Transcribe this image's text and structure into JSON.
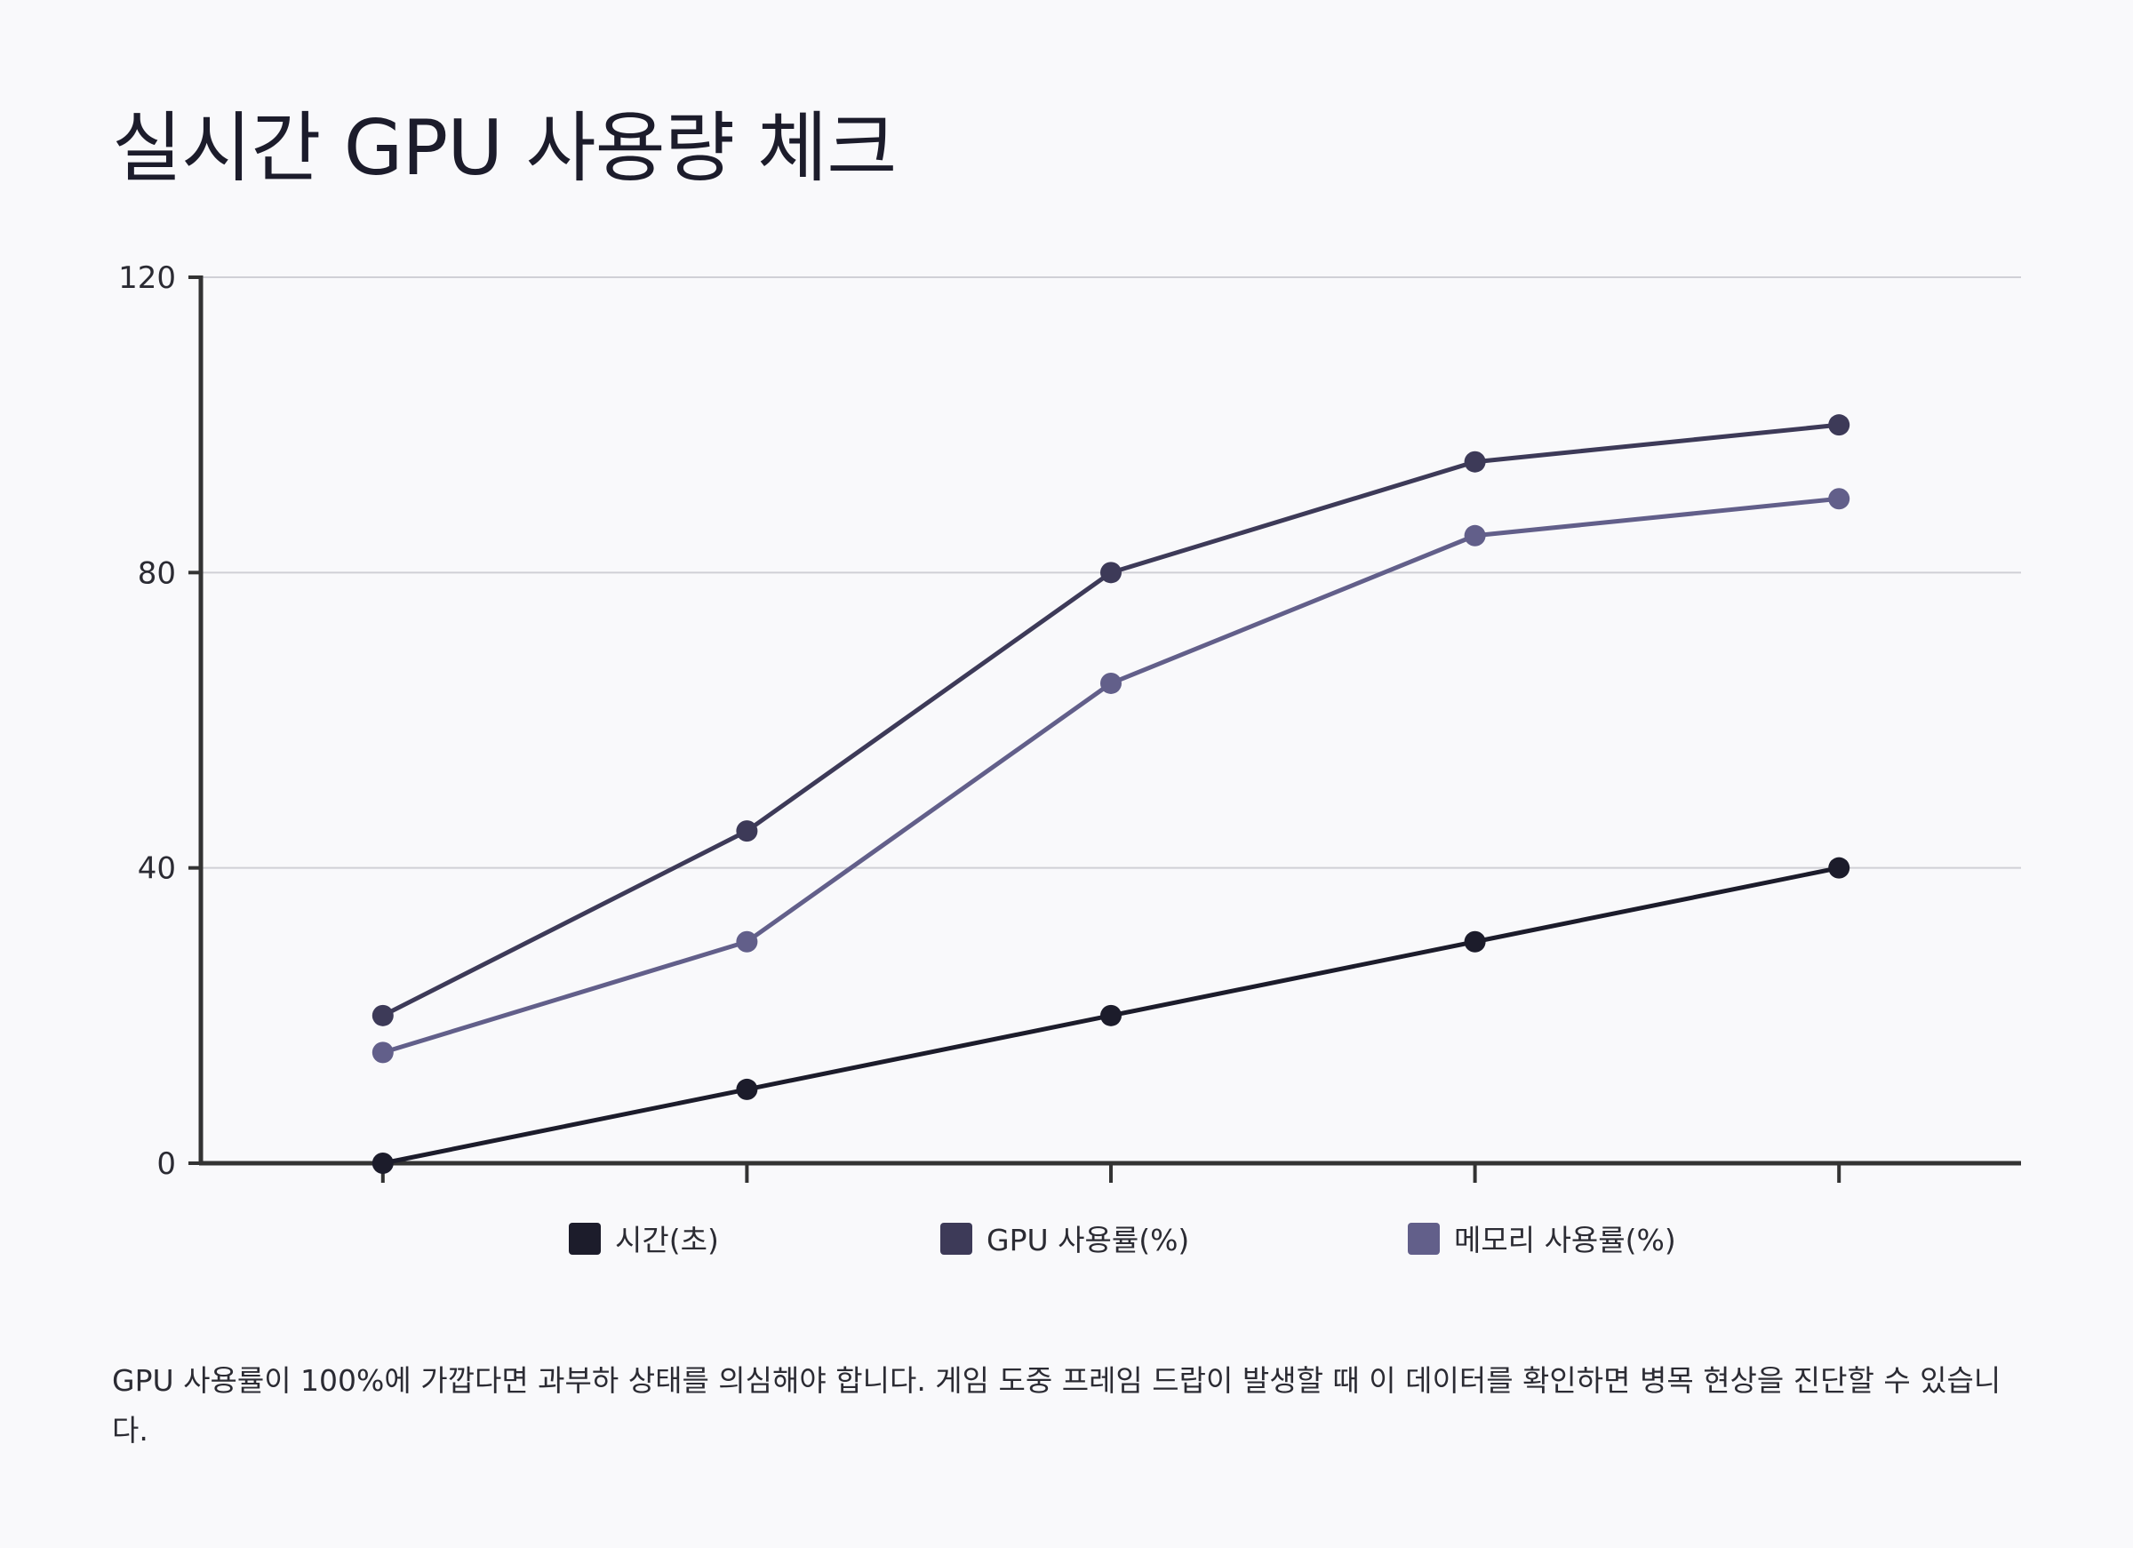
{
  "title": "실시간 GPU 사용량 체크",
  "caption": "GPU 사용률이 100%에 가깝다면 과부하 상태를 의심해야 합니다. 게임 도중 프레임 드랍이 발생할 때 이 데이터를 확인하면 병목 현상을 진단할 수 있습니다.",
  "colors": {
    "background": "#f9f9fb",
    "axis": "#333333",
    "grid": "#d0d0d6",
    "series": [
      "#1c1c2b",
      "#3d3a58",
      "#625f8a"
    ]
  },
  "chart_data": {
    "type": "line",
    "title": "실시간 GPU 사용량 체크",
    "xlabel": "",
    "ylabel": "",
    "categories": [
      "",
      "",
      "",
      "",
      ""
    ],
    "ylim": [
      0,
      120
    ],
    "yticks": [
      0,
      40,
      80,
      120
    ],
    "grid": true,
    "legend_position": "bottom",
    "series": [
      {
        "name": "시간(초)",
        "values": [
          0,
          10,
          20,
          30,
          40
        ]
      },
      {
        "name": "GPU 사용률(%)",
        "values": [
          20,
          45,
          80,
          95,
          100
        ]
      },
      {
        "name": "메모리 사용률(%)",
        "values": [
          15,
          30,
          65,
          85,
          90
        ]
      }
    ]
  }
}
